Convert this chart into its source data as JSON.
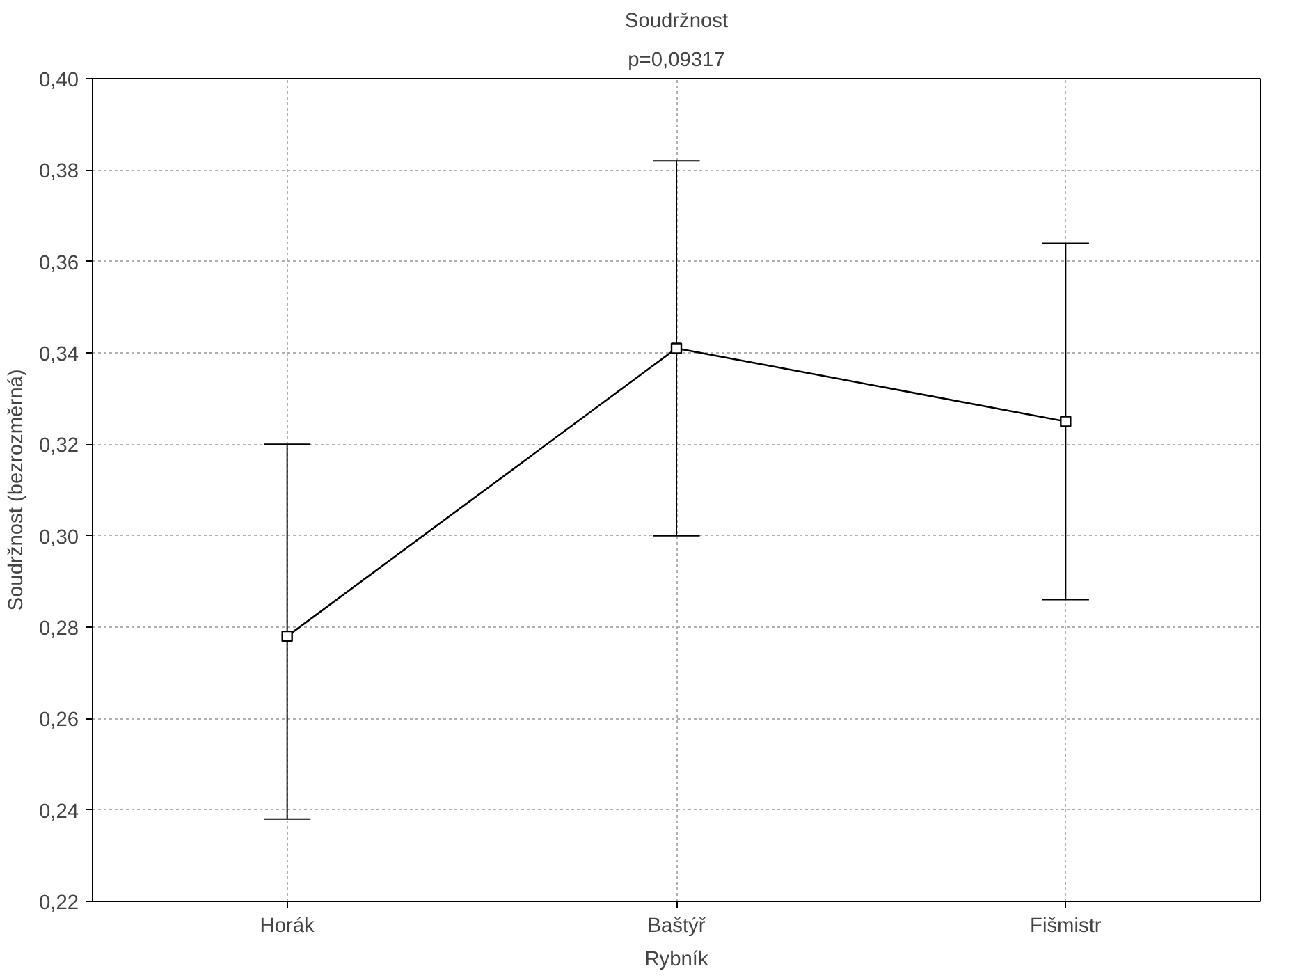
{
  "chart_data": {
    "type": "line",
    "title": "Soudržnost",
    "subtitle": "p=0,09317",
    "xlabel": "Rybník",
    "ylabel": "Soudržnost (bezrozměrná)",
    "categories": [
      "Horák",
      "Baštýř",
      "Fišmistr"
    ],
    "series": [
      {
        "color": "#000000",
        "values": [
          0.278,
          0.341,
          0.325
        ],
        "errors": [
          [
            0.238,
            0.32
          ],
          [
            0.3,
            0.382
          ],
          [
            0.286,
            0.364
          ]
        ]
      }
    ],
    "ylim": [
      0.22,
      0.4
    ],
    "yticks": [
      {
        "value": 0.22,
        "label": "0,22"
      },
      {
        "value": 0.24,
        "label": "0,24"
      },
      {
        "value": 0.26,
        "label": "0,26"
      },
      {
        "value": 0.28,
        "label": "0,28"
      },
      {
        "value": 0.3,
        "label": "0,30"
      },
      {
        "value": 0.32,
        "label": "0,32"
      },
      {
        "value": 0.34,
        "label": "0,34"
      },
      {
        "value": 0.36,
        "label": "0,36"
      },
      {
        "value": 0.38,
        "label": "0,38"
      },
      {
        "value": 0.4,
        "label": "0,40"
      }
    ],
    "grid": true,
    "marker": "square",
    "line_style": "solid"
  }
}
